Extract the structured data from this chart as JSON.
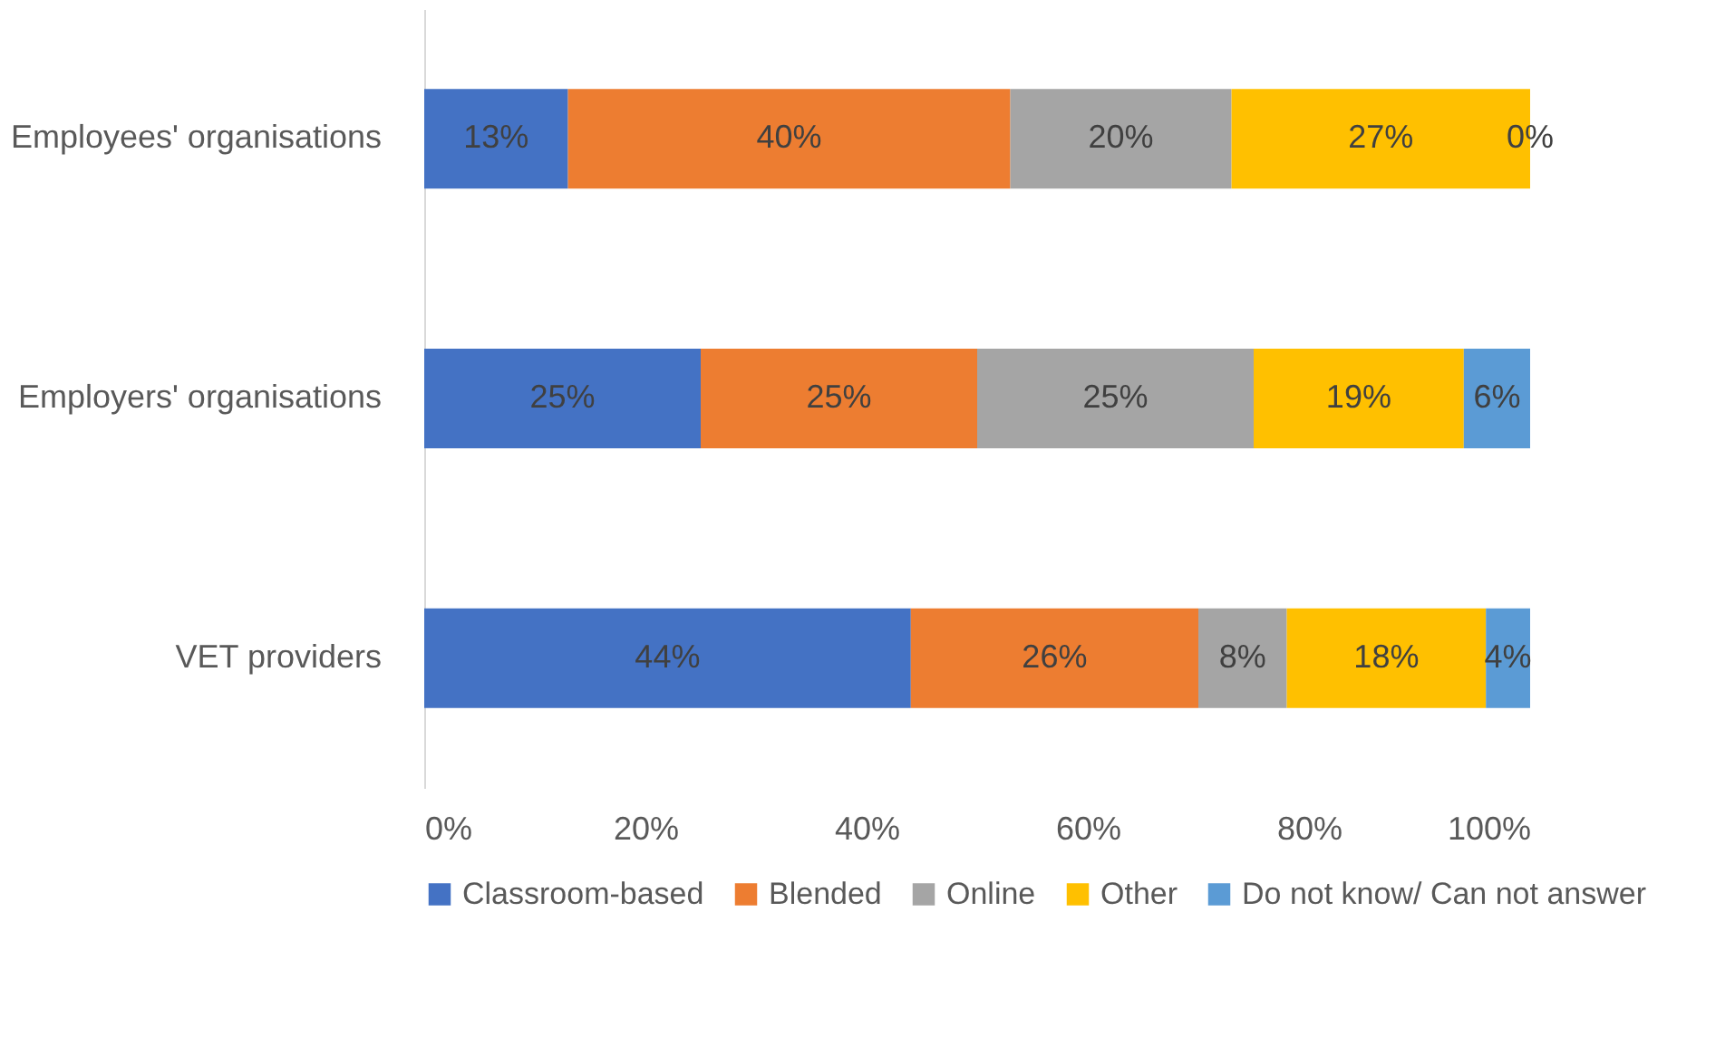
{
  "chart_data": {
    "type": "bar",
    "orientation": "horizontal",
    "stacked": true,
    "categories": [
      "Employees' organisations",
      "Employers' organisations",
      "VET providers"
    ],
    "series": [
      {
        "name": "Classroom-based",
        "color": "#4472c4",
        "values": [
          13,
          25,
          44
        ],
        "value_labels": [
          "13%",
          "25%",
          "44%"
        ]
      },
      {
        "name": "Blended",
        "color": "#ed7d31",
        "values": [
          40,
          25,
          26
        ],
        "value_labels": [
          "40%",
          "25%",
          "26%"
        ]
      },
      {
        "name": "Online",
        "color": "#a5a5a5",
        "values": [
          20,
          25,
          8
        ],
        "value_labels": [
          "20%",
          "25%",
          "8%"
        ]
      },
      {
        "name": "Other",
        "color": "#ffc000",
        "values": [
          27,
          19,
          18
        ],
        "value_labels": [
          "27%",
          "19%",
          "18%"
        ]
      },
      {
        "name": "Do not know/ Can not answer",
        "color": "#5b9bd5",
        "values": [
          0,
          6,
          4
        ],
        "value_labels": [
          "0%",
          "6%",
          "4%"
        ]
      }
    ],
    "xlim": [
      0,
      100
    ],
    "xticks": [
      {
        "value": 0,
        "label": "0%"
      },
      {
        "value": 20,
        "label": "20%"
      },
      {
        "value": 40,
        "label": "40%"
      },
      {
        "value": 60,
        "label": "60%"
      },
      {
        "value": 80,
        "label": "80%"
      },
      {
        "value": 100,
        "label": "100%"
      }
    ],
    "grid": false,
    "legend": "bottom"
  }
}
